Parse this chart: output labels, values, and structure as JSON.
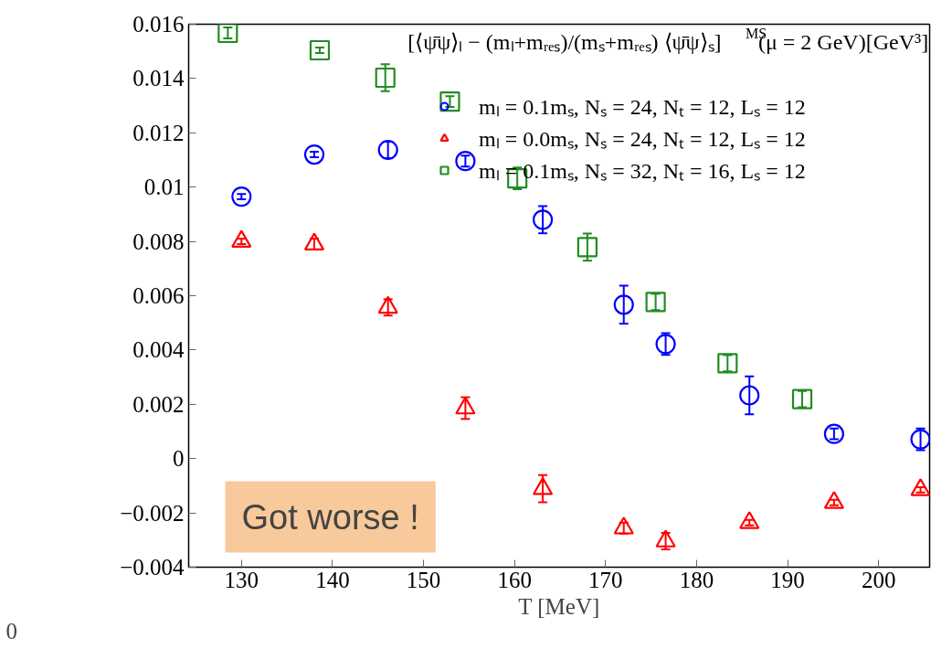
{
  "chart_data": {
    "type": "scatter",
    "title": "[⟨ψ̄ψ⟩ₗ − (mₗ+mᵣₑₛ)/(mₛ+mᵣₑₛ) ⟨ψ̄ψ⟩ₛ]$^{MS}$(μ = 2 GeV)[GeV³]",
    "xlabel": "T [MeV]",
    "xlim": [
      124.2,
      205.6
    ],
    "xticks": [
      130,
      140,
      150,
      160,
      170,
      180,
      190,
      200
    ],
    "ylim": [
      -0.004,
      0.016
    ],
    "yticks": [
      {
        "value": -0.004,
        "label": "−0.004"
      },
      {
        "value": -0.002,
        "label": "−0.002"
      },
      0,
      0.002,
      0.004,
      0.006,
      0.008,
      0.01,
      0.012,
      0.014,
      0.016
    ],
    "grid": false,
    "legend": "top right",
    "series": [
      {
        "name": "mₗ = 0.1mₛ, Nₛ = 24, Nₜ = 12, Lₛ = 12",
        "color": "#0000ff",
        "marker": "circle",
        "x": [
          130.0,
          138.0,
          146.1,
          154.6,
          163.1,
          172.0,
          176.6,
          185.8,
          195.1,
          204.6
        ],
        "values": [
          0.00965,
          0.0112,
          0.01137,
          0.01096,
          0.0088,
          0.00567,
          0.00422,
          0.00233,
          0.00091,
          0.00071
        ],
        "errors": [
          0.0001,
          0.0001,
          0.0003,
          0.0002,
          0.0005,
          0.0007,
          0.0004,
          0.0007,
          0.0002,
          0.0004
        ]
      },
      {
        "name": "mₗ = 0.0mₛ, Nₛ = 24, Nₜ = 12, Lₛ = 12",
        "color": "#ff0000",
        "marker": "triangle",
        "x": [
          130.0,
          138.0,
          146.1,
          154.6,
          163.1,
          172.0,
          176.6,
          185.8,
          195.1,
          204.6
        ],
        "values": [
          0.008,
          0.0079,
          0.00557,
          0.00186,
          -0.00111,
          -0.00256,
          -0.00304,
          -0.00236,
          -0.00162,
          -0.00115
        ],
        "errors": [
          0.0001,
          0.0002,
          0.0003,
          0.0004,
          0.0005,
          0.0002,
          0.0003,
          0.0001,
          0.0001,
          0.0001
        ]
      },
      {
        "name": "mₗ = 0.1mₛ, Nₛ = 32, Nₜ = 16, Lₛ = 12",
        "color": "#228b22",
        "marker": "square",
        "x": [
          128.5,
          138.6,
          145.8,
          152.9,
          160.3,
          168.0,
          175.5,
          183.4,
          191.6
        ],
        "values": [
          0.01568,
          0.01504,
          0.01403,
          0.01315,
          0.01032,
          0.00779,
          0.00577,
          0.00351,
          0.00219
        ],
        "errors": [
          0.0002,
          0.0001,
          0.0005,
          0.0002,
          0.0004,
          0.0005,
          0.0003,
          0.0003,
          0.0003
        ]
      }
    ],
    "annotations": [
      "Got worse !",
      "0"
    ]
  }
}
